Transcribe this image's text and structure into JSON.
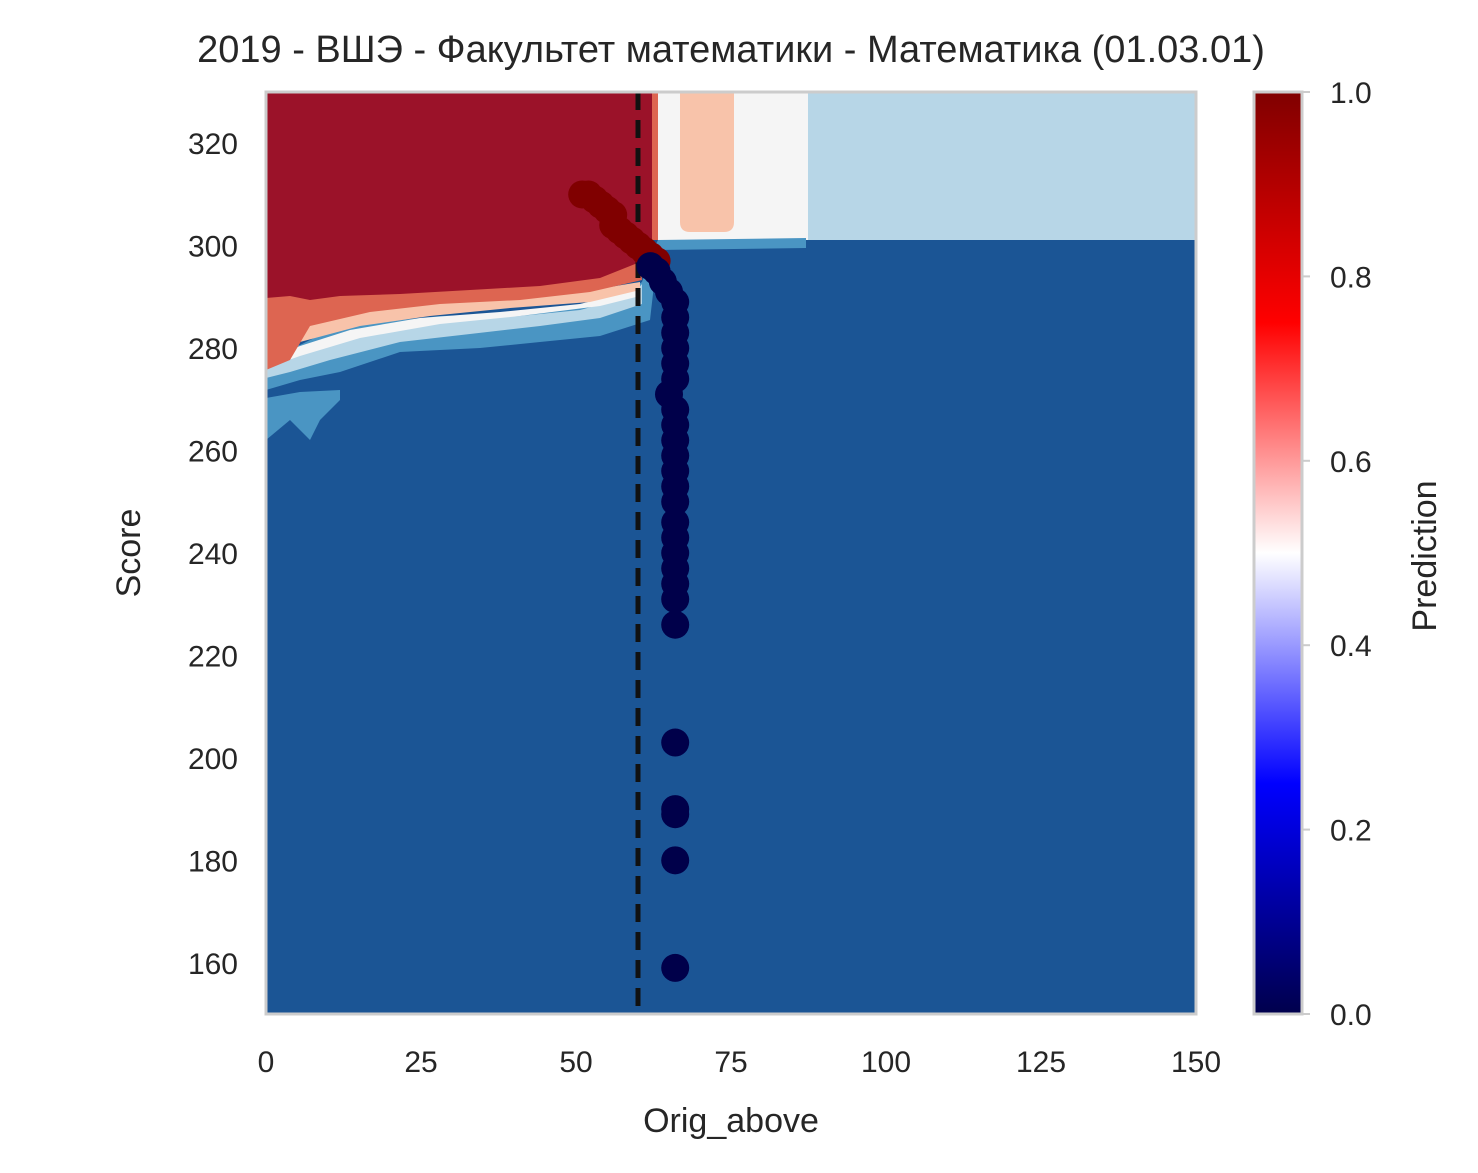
{
  "chart_data": {
    "type": "contour",
    "title": "2019 - ВШЭ - Факультет математики - Математика (01.03.01)",
    "xlabel": "Orig_above",
    "ylabel": "Score",
    "xlim": [
      0,
      150
    ],
    "ylim": [
      150,
      330
    ],
    "xticks": [
      0,
      25,
      50,
      75,
      100,
      125,
      150
    ],
    "yticks": [
      160,
      180,
      200,
      220,
      240,
      260,
      280,
      300,
      320
    ],
    "grid": false,
    "colormap": "seismic",
    "colorbar": {
      "label": "Prediction",
      "range": [
        0,
        1
      ],
      "ticks": [
        "0.0",
        "0.2",
        "0.4",
        "0.6",
        "0.8",
        "1.0"
      ]
    },
    "threshold_line": {
      "axis": "x",
      "value": 60,
      "style": "dashed",
      "color": "#111111"
    },
    "contour_levels": [
      {
        "value": 0.0,
        "color": "#1b5595"
      },
      {
        "value": 0.25,
        "color": "#4a95c3"
      },
      {
        "value": 0.35,
        "color": "#b7d6e7"
      },
      {
        "value": 0.5,
        "color": "#f5f5f5"
      },
      {
        "value": 0.65,
        "color": "#f8c3aa"
      },
      {
        "value": 0.75,
        "color": "#dd6551"
      },
      {
        "value": 0.9,
        "color": "#9b1229"
      }
    ],
    "points": [
      {
        "x": 51,
        "y": 310,
        "p": 1
      },
      {
        "x": 52,
        "y": 310,
        "p": 1
      },
      {
        "x": 53,
        "y": 309,
        "p": 1
      },
      {
        "x": 54,
        "y": 308,
        "p": 1
      },
      {
        "x": 55,
        "y": 307,
        "p": 1
      },
      {
        "x": 56,
        "y": 306,
        "p": 1
      },
      {
        "x": 56,
        "y": 304,
        "p": 1
      },
      {
        "x": 57,
        "y": 303,
        "p": 1
      },
      {
        "x": 58,
        "y": 302,
        "p": 1
      },
      {
        "x": 59,
        "y": 301,
        "p": 1
      },
      {
        "x": 60,
        "y": 300,
        "p": 1
      },
      {
        "x": 61,
        "y": 299,
        "p": 1
      },
      {
        "x": 62,
        "y": 298,
        "p": 1
      },
      {
        "x": 63,
        "y": 297,
        "p": 1
      },
      {
        "x": 62,
        "y": 296,
        "p": 0
      },
      {
        "x": 63,
        "y": 295,
        "p": 0
      },
      {
        "x": 64,
        "y": 293,
        "p": 0
      },
      {
        "x": 65,
        "y": 291,
        "p": 0
      },
      {
        "x": 66,
        "y": 289,
        "p": 0
      },
      {
        "x": 66,
        "y": 286,
        "p": 0
      },
      {
        "x": 66,
        "y": 283,
        "p": 0
      },
      {
        "x": 66,
        "y": 280,
        "p": 0
      },
      {
        "x": 66,
        "y": 277,
        "p": 0
      },
      {
        "x": 66,
        "y": 274,
        "p": 0
      },
      {
        "x": 65,
        "y": 271,
        "p": 0
      },
      {
        "x": 66,
        "y": 268,
        "p": 0
      },
      {
        "x": 66,
        "y": 265,
        "p": 0
      },
      {
        "x": 66,
        "y": 262,
        "p": 0
      },
      {
        "x": 66,
        "y": 259,
        "p": 0
      },
      {
        "x": 66,
        "y": 256,
        "p": 0
      },
      {
        "x": 66,
        "y": 253,
        "p": 0
      },
      {
        "x": 66,
        "y": 250,
        "p": 0
      },
      {
        "x": 66,
        "y": 246,
        "p": 0
      },
      {
        "x": 66,
        "y": 243,
        "p": 0
      },
      {
        "x": 66,
        "y": 240,
        "p": 0
      },
      {
        "x": 66,
        "y": 237,
        "p": 0
      },
      {
        "x": 66,
        "y": 234,
        "p": 0
      },
      {
        "x": 66,
        "y": 231,
        "p": 0
      },
      {
        "x": 66,
        "y": 226,
        "p": 0
      },
      {
        "x": 66,
        "y": 203,
        "p": 0
      },
      {
        "x": 66,
        "y": 190,
        "p": 0
      },
      {
        "x": 66,
        "y": 189,
        "p": 0
      },
      {
        "x": 66,
        "y": 180,
        "p": 0
      },
      {
        "x": 66,
        "y": 159,
        "p": 0
      }
    ]
  },
  "colors": {
    "point_high": "#800000",
    "point_low": "#00004a",
    "frame": "#cccccc"
  }
}
